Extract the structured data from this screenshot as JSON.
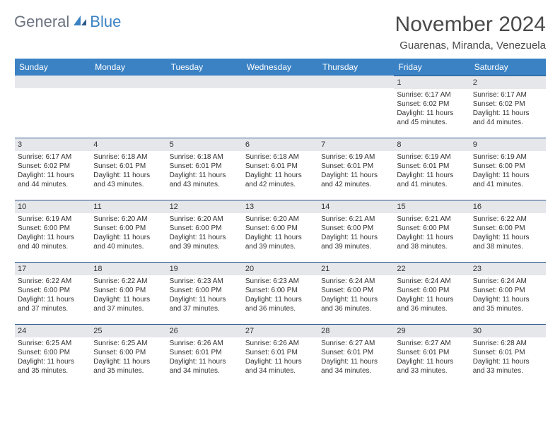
{
  "logo": {
    "general": "General",
    "blue": "Blue"
  },
  "title": "November 2024",
  "location": "Guarenas, Miranda, Venezuela",
  "colors": {
    "header_bg": "#3b82c4",
    "header_text": "#ffffff",
    "cell_border": "#2c5a8c",
    "daynum_bg": "#e5e7eb",
    "text": "#333333",
    "logo_gray": "#6b7280",
    "logo_blue": "#3b82c4"
  },
  "typography": {
    "title_fontsize": 30,
    "location_fontsize": 15,
    "dayheader_fontsize": 12,
    "daynum_fontsize": 11,
    "body_fontsize": 10
  },
  "day_headers": [
    "Sunday",
    "Monday",
    "Tuesday",
    "Wednesday",
    "Thursday",
    "Friday",
    "Saturday"
  ],
  "weeks": [
    [
      {
        "num": "",
        "lines": []
      },
      {
        "num": "",
        "lines": []
      },
      {
        "num": "",
        "lines": []
      },
      {
        "num": "",
        "lines": []
      },
      {
        "num": "",
        "lines": []
      },
      {
        "num": "1",
        "lines": [
          "Sunrise: 6:17 AM",
          "Sunset: 6:02 PM",
          "Daylight: 11 hours and 45 minutes."
        ]
      },
      {
        "num": "2",
        "lines": [
          "Sunrise: 6:17 AM",
          "Sunset: 6:02 PM",
          "Daylight: 11 hours and 44 minutes."
        ]
      }
    ],
    [
      {
        "num": "3",
        "lines": [
          "Sunrise: 6:17 AM",
          "Sunset: 6:02 PM",
          "Daylight: 11 hours and 44 minutes."
        ]
      },
      {
        "num": "4",
        "lines": [
          "Sunrise: 6:18 AM",
          "Sunset: 6:01 PM",
          "Daylight: 11 hours and 43 minutes."
        ]
      },
      {
        "num": "5",
        "lines": [
          "Sunrise: 6:18 AM",
          "Sunset: 6:01 PM",
          "Daylight: 11 hours and 43 minutes."
        ]
      },
      {
        "num": "6",
        "lines": [
          "Sunrise: 6:18 AM",
          "Sunset: 6:01 PM",
          "Daylight: 11 hours and 42 minutes."
        ]
      },
      {
        "num": "7",
        "lines": [
          "Sunrise: 6:19 AM",
          "Sunset: 6:01 PM",
          "Daylight: 11 hours and 42 minutes."
        ]
      },
      {
        "num": "8",
        "lines": [
          "Sunrise: 6:19 AM",
          "Sunset: 6:01 PM",
          "Daylight: 11 hours and 41 minutes."
        ]
      },
      {
        "num": "9",
        "lines": [
          "Sunrise: 6:19 AM",
          "Sunset: 6:00 PM",
          "Daylight: 11 hours and 41 minutes."
        ]
      }
    ],
    [
      {
        "num": "10",
        "lines": [
          "Sunrise: 6:19 AM",
          "Sunset: 6:00 PM",
          "Daylight: 11 hours and 40 minutes."
        ]
      },
      {
        "num": "11",
        "lines": [
          "Sunrise: 6:20 AM",
          "Sunset: 6:00 PM",
          "Daylight: 11 hours and 40 minutes."
        ]
      },
      {
        "num": "12",
        "lines": [
          "Sunrise: 6:20 AM",
          "Sunset: 6:00 PM",
          "Daylight: 11 hours and 39 minutes."
        ]
      },
      {
        "num": "13",
        "lines": [
          "Sunrise: 6:20 AM",
          "Sunset: 6:00 PM",
          "Daylight: 11 hours and 39 minutes."
        ]
      },
      {
        "num": "14",
        "lines": [
          "Sunrise: 6:21 AM",
          "Sunset: 6:00 PM",
          "Daylight: 11 hours and 39 minutes."
        ]
      },
      {
        "num": "15",
        "lines": [
          "Sunrise: 6:21 AM",
          "Sunset: 6:00 PM",
          "Daylight: 11 hours and 38 minutes."
        ]
      },
      {
        "num": "16",
        "lines": [
          "Sunrise: 6:22 AM",
          "Sunset: 6:00 PM",
          "Daylight: 11 hours and 38 minutes."
        ]
      }
    ],
    [
      {
        "num": "17",
        "lines": [
          "Sunrise: 6:22 AM",
          "Sunset: 6:00 PM",
          "Daylight: 11 hours and 37 minutes."
        ]
      },
      {
        "num": "18",
        "lines": [
          "Sunrise: 6:22 AM",
          "Sunset: 6:00 PM",
          "Daylight: 11 hours and 37 minutes."
        ]
      },
      {
        "num": "19",
        "lines": [
          "Sunrise: 6:23 AM",
          "Sunset: 6:00 PM",
          "Daylight: 11 hours and 37 minutes."
        ]
      },
      {
        "num": "20",
        "lines": [
          "Sunrise: 6:23 AM",
          "Sunset: 6:00 PM",
          "Daylight: 11 hours and 36 minutes."
        ]
      },
      {
        "num": "21",
        "lines": [
          "Sunrise: 6:24 AM",
          "Sunset: 6:00 PM",
          "Daylight: 11 hours and 36 minutes."
        ]
      },
      {
        "num": "22",
        "lines": [
          "Sunrise: 6:24 AM",
          "Sunset: 6:00 PM",
          "Daylight: 11 hours and 36 minutes."
        ]
      },
      {
        "num": "23",
        "lines": [
          "Sunrise: 6:24 AM",
          "Sunset: 6:00 PM",
          "Daylight: 11 hours and 35 minutes."
        ]
      }
    ],
    [
      {
        "num": "24",
        "lines": [
          "Sunrise: 6:25 AM",
          "Sunset: 6:00 PM",
          "Daylight: 11 hours and 35 minutes."
        ]
      },
      {
        "num": "25",
        "lines": [
          "Sunrise: 6:25 AM",
          "Sunset: 6:00 PM",
          "Daylight: 11 hours and 35 minutes."
        ]
      },
      {
        "num": "26",
        "lines": [
          "Sunrise: 6:26 AM",
          "Sunset: 6:01 PM",
          "Daylight: 11 hours and 34 minutes."
        ]
      },
      {
        "num": "27",
        "lines": [
          "Sunrise: 6:26 AM",
          "Sunset: 6:01 PM",
          "Daylight: 11 hours and 34 minutes."
        ]
      },
      {
        "num": "28",
        "lines": [
          "Sunrise: 6:27 AM",
          "Sunset: 6:01 PM",
          "Daylight: 11 hours and 34 minutes."
        ]
      },
      {
        "num": "29",
        "lines": [
          "Sunrise: 6:27 AM",
          "Sunset: 6:01 PM",
          "Daylight: 11 hours and 33 minutes."
        ]
      },
      {
        "num": "30",
        "lines": [
          "Sunrise: 6:28 AM",
          "Sunset: 6:01 PM",
          "Daylight: 11 hours and 33 minutes."
        ]
      }
    ]
  ]
}
